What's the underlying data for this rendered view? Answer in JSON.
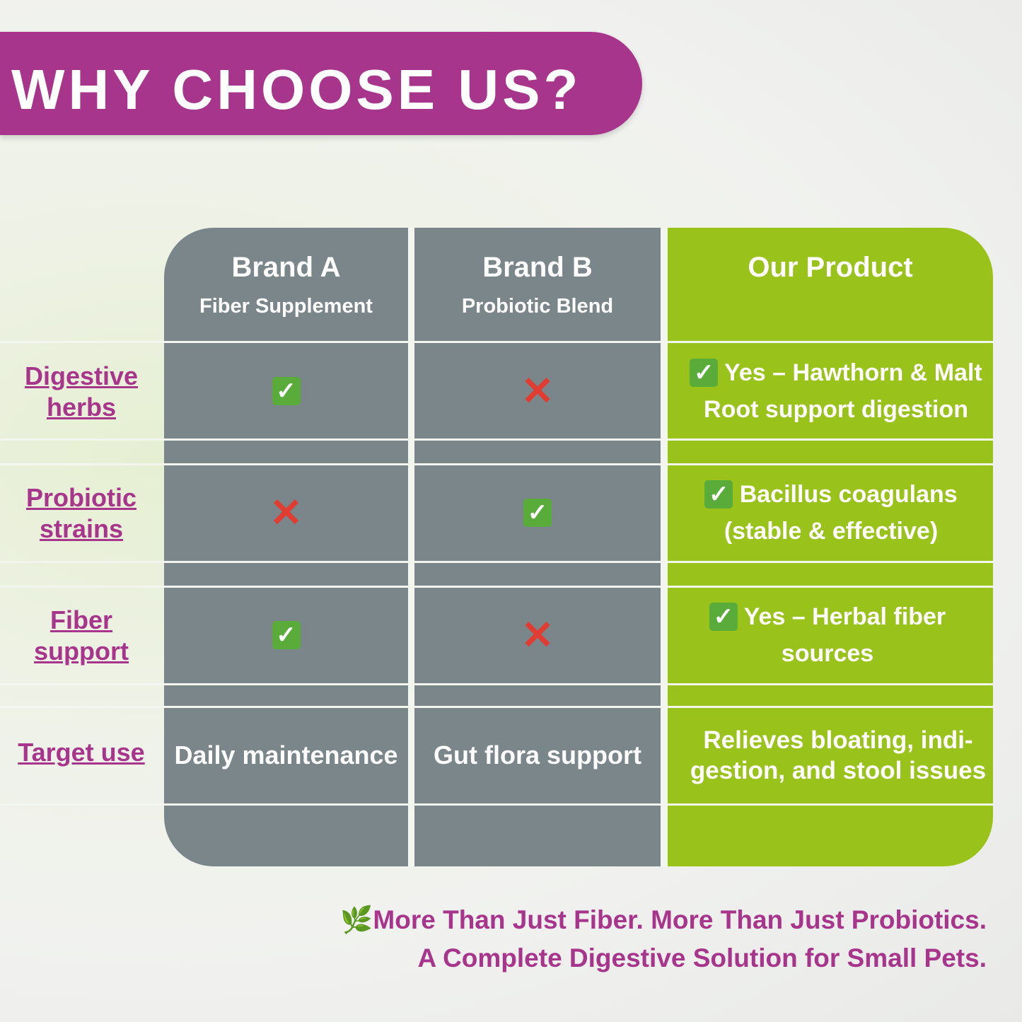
{
  "title": "WHY CHOOSE US?",
  "columns": [
    {
      "title": "Brand A",
      "subtitle": "Fiber Supplement"
    },
    {
      "title": "Brand B",
      "subtitle": "Probiotic Blend"
    },
    {
      "title": "Our Product"
    }
  ],
  "rows": [
    {
      "label": "Digestive herbs",
      "brand_a": "check",
      "brand_b": "cross",
      "ours": "Yes – Hawthorn & Malt Root support digestion",
      "ours_icon": "check"
    },
    {
      "label": "Probiotic strains",
      "brand_a": "cross",
      "brand_b": "check",
      "ours": "Bacillus coagulans (stable & effective)",
      "ours_icon": "check"
    },
    {
      "label": "Fiber support",
      "brand_a": "check",
      "brand_b": "cross",
      "ours": "Yes – Herbal fiber sources",
      "ours_icon": "check"
    },
    {
      "label": "Target use",
      "brand_a": "Daily maintenance",
      "brand_b": "Gut flora support",
      "ours": "Relieves bloating, indi-gestion, and stool issues"
    }
  ],
  "tagline": {
    "line1": "More Than Just Fiber. More Than Just Probiotics.",
    "line2": "A Complete Digestive Solution for Small Pets.",
    "icon": "herb-leaf-icon"
  },
  "colors": {
    "banner": "#a8358c",
    "competitor": "#7a868a",
    "ours": "#99c21a",
    "check": "#5aac3a",
    "cross": "#e03c31"
  }
}
